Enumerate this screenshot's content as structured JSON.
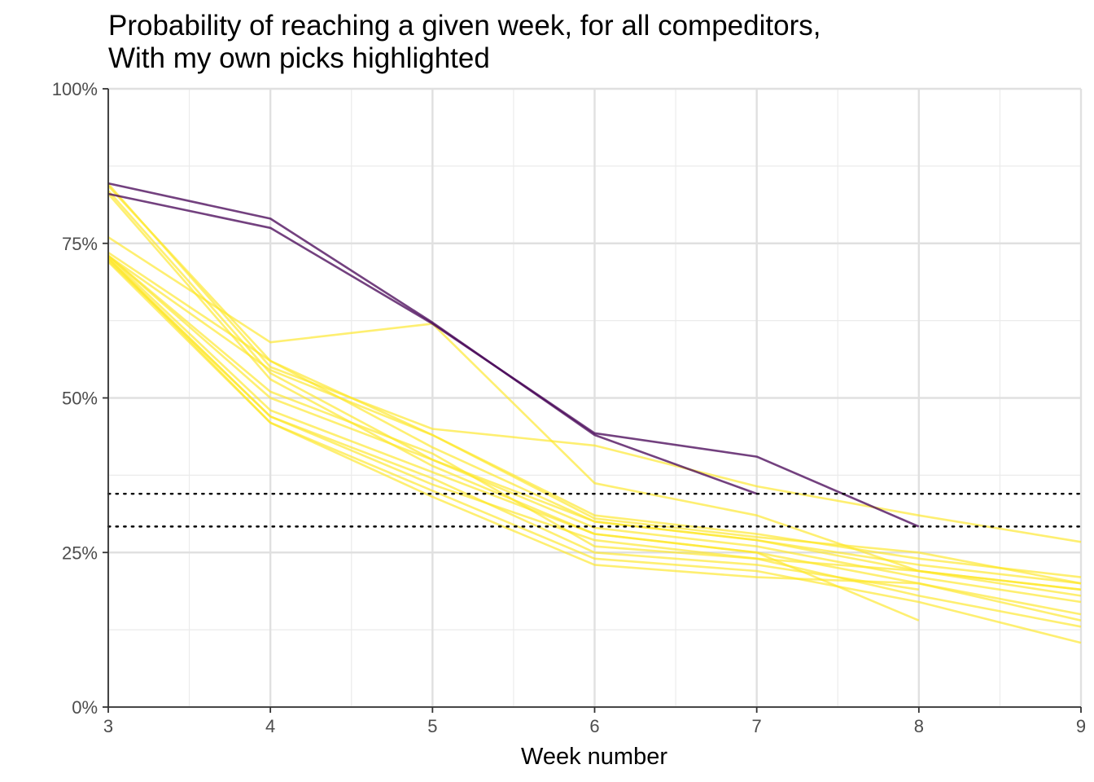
{
  "chart_data": {
    "type": "line",
    "title_lines": [
      "Probability of reaching a given week, for all compeditors,",
      "With my own picks highlighted"
    ],
    "xlabel": "Week number",
    "ylabel": "",
    "xlim": [
      3,
      9
    ],
    "ylim": [
      0,
      1
    ],
    "x_ticks": [
      3,
      4,
      5,
      6,
      7,
      8,
      9
    ],
    "y_ticks": [
      0,
      0.25,
      0.5,
      0.75,
      1.0
    ],
    "y_tick_labels": [
      "0%",
      "25%",
      "50%",
      "75%",
      "100%"
    ],
    "grid": true,
    "reference_lines": [
      {
        "y": 0.345,
        "style": "dotted",
        "color": "#000000"
      },
      {
        "y": 0.292,
        "style": "dotted",
        "color": "#000000"
      }
    ],
    "colors": {
      "highlight": "#440154",
      "others": "#fde725"
    },
    "series": [
      {
        "highlighted": true,
        "x": [
          3,
          4,
          5,
          6,
          7
        ],
        "values": [
          0.847,
          0.79,
          0.622,
          0.44,
          0.345
        ]
      },
      {
        "highlighted": true,
        "x": [
          3,
          4,
          5,
          6,
          7,
          8
        ],
        "values": [
          0.83,
          0.775,
          0.62,
          0.443,
          0.405,
          0.292
        ]
      },
      {
        "highlighted": false,
        "x": [
          3,
          4,
          5,
          6,
          7,
          8,
          9
        ],
        "values": [
          0.846,
          0.55,
          0.45,
          0.423,
          0.357,
          0.31,
          0.267
        ]
      },
      {
        "highlighted": false,
        "x": [
          3,
          4,
          5,
          6,
          7,
          8,
          9
        ],
        "values": [
          0.843,
          0.56,
          0.44,
          0.31,
          0.28,
          0.24,
          0.21
        ]
      },
      {
        "highlighted": false,
        "x": [
          3,
          4,
          5,
          6,
          7,
          8,
          9
        ],
        "values": [
          0.835,
          0.54,
          0.4,
          0.3,
          0.27,
          0.23,
          0.2
        ]
      },
      {
        "highlighted": false,
        "x": [
          3,
          4,
          5,
          6,
          7,
          8
        ],
        "values": [
          0.83,
          0.53,
          0.39,
          0.28,
          0.25,
          0.14
        ]
      },
      {
        "highlighted": false,
        "x": [
          3,
          4,
          5,
          6,
          7,
          8,
          9
        ],
        "values": [
          0.76,
          0.59,
          0.62,
          0.362,
          0.31,
          0.22,
          0.19
        ]
      },
      {
        "highlighted": false,
        "x": [
          3,
          4,
          5,
          6,
          7,
          8,
          9
        ],
        "values": [
          0.735,
          0.56,
          0.42,
          0.3,
          0.27,
          0.22,
          0.18
        ]
      },
      {
        "highlighted": false,
        "x": [
          3,
          4,
          5,
          6,
          7,
          8,
          9
        ],
        "values": [
          0.73,
          0.5,
          0.4,
          0.29,
          0.26,
          0.21,
          0.17
        ]
      },
      {
        "highlighted": false,
        "x": [
          3,
          4,
          5,
          6,
          7,
          8,
          9
        ],
        "values": [
          0.728,
          0.48,
          0.38,
          0.28,
          0.25,
          0.2,
          0.14
        ]
      },
      {
        "highlighted": false,
        "x": [
          3,
          4,
          5,
          6,
          7,
          8,
          9
        ],
        "values": [
          0.725,
          0.47,
          0.36,
          0.27,
          0.24,
          0.18,
          0.13
        ]
      },
      {
        "highlighted": false,
        "x": [
          3,
          4,
          5,
          6,
          7,
          8,
          9
        ],
        "values": [
          0.72,
          0.46,
          0.35,
          0.24,
          0.22,
          0.17,
          0.104
        ]
      },
      {
        "highlighted": false,
        "x": [
          3,
          4,
          5,
          6,
          7,
          8
        ],
        "values": [
          0.722,
          0.47,
          0.37,
          0.25,
          0.23,
          0.19
        ]
      },
      {
        "highlighted": false,
        "x": [
          3,
          4,
          5,
          6,
          7,
          8,
          9
        ],
        "values": [
          0.73,
          0.51,
          0.41,
          0.26,
          0.24,
          0.22,
          0.19
        ]
      },
      {
        "highlighted": false,
        "x": [
          3,
          4,
          5,
          6,
          7,
          8,
          9
        ],
        "values": [
          0.726,
          0.46,
          0.34,
          0.23,
          0.21,
          0.2,
          0.15
        ]
      },
      {
        "highlighted": false,
        "x": [
          3,
          4,
          5,
          6,
          7,
          8,
          9
        ],
        "values": [
          0.73,
          0.545,
          0.44,
          0.305,
          0.275,
          0.25,
          0.2
        ]
      }
    ]
  }
}
